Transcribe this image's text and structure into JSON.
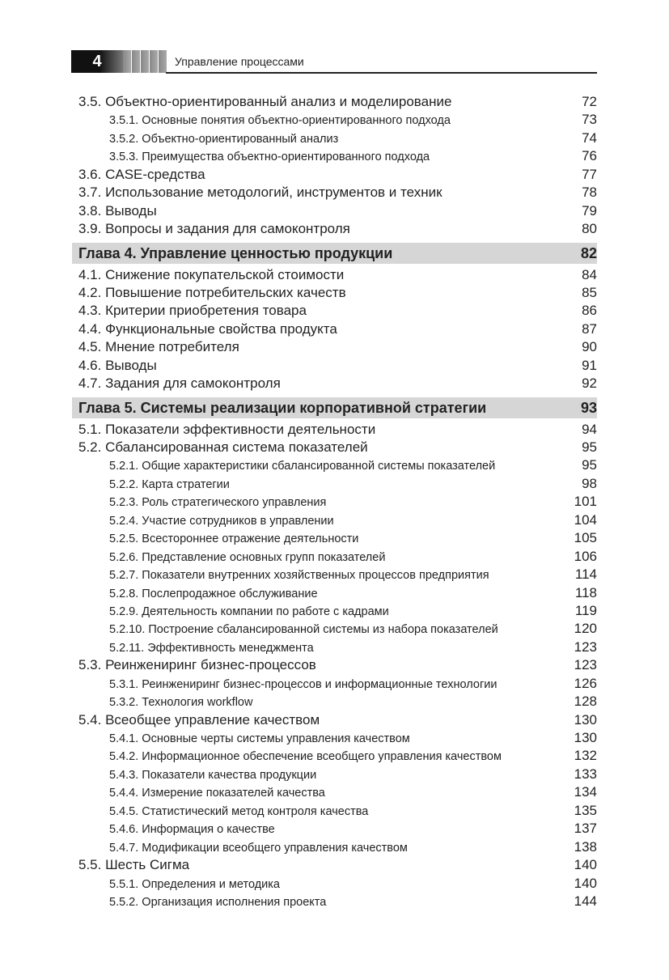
{
  "header": {
    "page_number": "4",
    "running_title": "Управление процессами"
  },
  "toc": [
    {
      "level": 2,
      "title": "3.5. Объектно-ориентированный анализ и моделирование",
      "page": "72"
    },
    {
      "level": 3,
      "title": "3.5.1. Основные понятия объектно-ориентированного подхода",
      "page": "73"
    },
    {
      "level": 3,
      "title": "3.5.2. Объектно-ориентированный анализ",
      "page": "74"
    },
    {
      "level": 3,
      "title": "3.5.3. Преимущества объектно-ориентированного подхода",
      "page": "76"
    },
    {
      "level": 2,
      "title": "3.6. CASE-средства",
      "page": "77"
    },
    {
      "level": 2,
      "title": "3.7. Использование методологий, инструментов и техник",
      "page": "78"
    },
    {
      "level": 2,
      "title": "3.8. Выводы",
      "page": "79"
    },
    {
      "level": 2,
      "title": "3.9. Вопросы и задания для самоконтроля",
      "page": "80"
    },
    {
      "level": 1,
      "title": "Глава 4. Управление ценностью продукции",
      "page": "82"
    },
    {
      "level": 2,
      "title": "4.1. Снижение покупательской стоимости",
      "page": "84"
    },
    {
      "level": 2,
      "title": "4.2. Повышение потребительских качеств",
      "page": "85"
    },
    {
      "level": 2,
      "title": "4.3. Критерии приобретения товара",
      "page": "86"
    },
    {
      "level": 2,
      "title": "4.4. Функциональные свойства продукта",
      "page": "87"
    },
    {
      "level": 2,
      "title": "4.5. Мнение потребителя",
      "page": "90"
    },
    {
      "level": 2,
      "title": "4.6. Выводы",
      "page": "91"
    },
    {
      "level": 2,
      "title": "4.7. Задания для самоконтроля",
      "page": "92"
    },
    {
      "level": 1,
      "title": "Глава 5. Системы реализации корпоративной стратегии",
      "page": "93"
    },
    {
      "level": 2,
      "title": "5.1. Показатели эффективности деятельности",
      "page": "94"
    },
    {
      "level": 2,
      "title": "5.2. Сбалансированная система показателей",
      "page": "95"
    },
    {
      "level": 3,
      "title": "5.2.1. Общие характеристики сбалансированной системы показателей",
      "page": "95"
    },
    {
      "level": 3,
      "title": "5.2.2. Карта стратегии",
      "page": "98"
    },
    {
      "level": 3,
      "title": "5.2.3. Роль стратегического управления",
      "page": "101"
    },
    {
      "level": 3,
      "title": "5.2.4. Участие сотрудников в управлении",
      "page": "104"
    },
    {
      "level": 3,
      "title": "5.2.5. Всестороннее отражение деятельности",
      "page": "105"
    },
    {
      "level": 3,
      "title": "5.2.6. Представление основных групп показателей",
      "page": "106"
    },
    {
      "level": 3,
      "title": "5.2.7. Показатели внутренних хозяйственных процессов предприятия",
      "page": "114"
    },
    {
      "level": 3,
      "title": "5.2.8. Послепродажное обслуживание",
      "page": "118"
    },
    {
      "level": 3,
      "title": "5.2.9. Деятельность компании по работе с кадрами",
      "page": "119"
    },
    {
      "level": 3,
      "title": "5.2.10. Построение сбалансированной системы из набора показателей",
      "page": "120"
    },
    {
      "level": 3,
      "title": "5.2.11. Эффективность менеджмента",
      "page": "123"
    },
    {
      "level": 2,
      "title": "5.3. Реинжениринг бизнес-процессов",
      "page": "123"
    },
    {
      "level": 3,
      "title": "5.3.1. Реинжениринг бизнес-процессов и информационные технологии",
      "page": "126"
    },
    {
      "level": 3,
      "title": "5.3.2. Технология workflow",
      "page": "128"
    },
    {
      "level": 2,
      "title": "5.4. Всеобщее управление качеством",
      "page": "130"
    },
    {
      "level": 3,
      "title": "5.4.1. Основные черты системы управления качеством",
      "page": "130"
    },
    {
      "level": 3,
      "title": "5.4.2. Информационное обеспечение всеобщего управления качеством",
      "page": "132"
    },
    {
      "level": 3,
      "title": "5.4.3. Показатели качества продукции",
      "page": "133"
    },
    {
      "level": 3,
      "title": "5.4.4. Измерение показателей качества",
      "page": "134"
    },
    {
      "level": 3,
      "title": "5.4.5. Статистический метод контроля качества",
      "page": "135"
    },
    {
      "level": 3,
      "title": "5.4.6. Информация о качестве",
      "page": "137"
    },
    {
      "level": 3,
      "title": "5.4.7. Модификации всеобщего управления качеством",
      "page": "138"
    },
    {
      "level": 2,
      "title": "5.5. Шесть Сигма",
      "page": "140"
    },
    {
      "level": 3,
      "title": "5.5.1. Определения и методика",
      "page": "140"
    },
    {
      "level": 3,
      "title": "5.5.2. Организация исполнения проекта",
      "page": "144"
    }
  ]
}
